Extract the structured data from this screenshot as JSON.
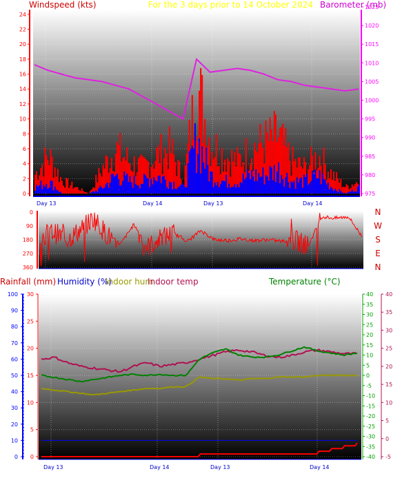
{
  "colors": {
    "wind": "#ff0000",
    "gust_bar": "#ff0000",
    "avg_bar": "#0000ff",
    "barometer": "#e020e0",
    "direction": "#ff0000",
    "rainfall": "#ff0000",
    "humidity": "#0000ff",
    "indoor_hum": "#999900",
    "indoor_temp": "#b01050",
    "temperature": "#008000",
    "subtitle": "#ffff00",
    "windspeed_title": "#cc0000",
    "barometer_title": "#cc00cc",
    "dir_letters": "#cc0000"
  },
  "top": {
    "title_left": "Windspeed (kts)",
    "title_center": "For the 3 days prior to   14 October 2024",
    "title_right": "Barometer (mb)",
    "x_ticks": [
      "Day 13",
      "Day 14",
      "Day 13",
      "Day 14"
    ]
  },
  "middle": {
    "y_ticks": [
      "360",
      "270",
      "180",
      "90",
      "0"
    ],
    "letters": [
      "N",
      "W",
      "S",
      "E",
      "N"
    ]
  },
  "bottom": {
    "title_rain": "Rainfall (mm)",
    "title_hum": "Humidity (%)",
    "title_inhum": "Indoor hum",
    "title_intemp": "Indoor temp",
    "title_temp": "Temperature (°C)",
    "x_ticks": [
      "Day 13",
      "Day 14",
      "Day 13",
      "Day 14"
    ]
  },
  "chart_data": [
    {
      "type": "line",
      "title": "Windspeed (kts)",
      "subtitle": "For the 3 days prior to   14 October 2024",
      "ylabel": "Windspeed (kts)",
      "ylim": [
        0,
        25
      ],
      "y_ticks": [
        0,
        2,
        4,
        6,
        8,
        10,
        12,
        14,
        16,
        18,
        20,
        22,
        24
      ],
      "y2label": "Barometer (mb)",
      "y2lim": [
        975,
        1025
      ],
      "y2_ticks": [
        975,
        980,
        985,
        990,
        995,
        1000,
        1005,
        1010,
        1015,
        1020,
        1025
      ],
      "x_ticks": [
        "Day 13",
        "Day 14",
        "Day 13",
        "Day 14"
      ],
      "x": [
        0,
        3,
        6,
        9,
        12,
        15,
        18,
        21,
        24,
        27,
        30,
        33,
        36,
        39,
        42,
        45,
        48,
        51,
        54,
        57,
        60,
        63,
        66,
        69,
        72
      ],
      "series": [
        {
          "name": "Gust",
          "values": [
            3,
            6,
            2,
            1,
            0,
            4,
            7,
            5,
            4,
            6,
            7,
            2,
            17,
            8,
            6,
            5,
            7,
            8,
            9,
            5,
            4,
            6,
            3,
            1,
            2
          ]
        },
        {
          "name": "Average",
          "values": [
            1,
            2,
            0,
            0,
            0,
            1,
            3,
            2,
            2,
            3,
            2,
            1,
            9,
            3,
            2,
            2,
            3,
            3,
            4,
            2,
            2,
            3,
            1,
            0,
            1
          ]
        },
        {
          "name": "Barometer",
          "values": [
            1009.5,
            1008,
            1007,
            1006,
            1005.5,
            1005,
            1004,
            1003,
            1001,
            999,
            997,
            995,
            1011,
            1007.5,
            1008,
            1008.5,
            1008,
            1007,
            1005.5,
            1005,
            1004,
            1003.5,
            1003,
            1002.5,
            1003
          ]
        }
      ]
    },
    {
      "type": "line",
      "ylabel": "",
      "ylim": [
        0,
        360
      ],
      "y_ticks": [
        0,
        90,
        180,
        270,
        360
      ],
      "x": [
        0,
        3,
        6,
        9,
        12,
        15,
        18,
        21,
        24,
        27,
        30,
        33,
        36,
        39,
        42,
        45,
        48,
        51,
        54,
        57,
        60,
        63,
        66,
        69,
        72
      ],
      "series": [
        {
          "name": "Wind direction",
          "values": [
            200,
            230,
            180,
            240,
            320,
            210,
            150,
            280,
            130,
            190,
            220,
            170,
            240,
            180,
            175,
            185,
            175,
            180,
            170,
            175,
            140,
            330,
            320,
            330,
            200
          ]
        }
      ]
    },
    {
      "type": "line",
      "title": "",
      "x_ticks": [
        "Day 13",
        "Day 14",
        "Day 13",
        "Day 14"
      ],
      "axes": {
        "humidity": {
          "label": "Humidity (%)",
          "lim": [
            0,
            100
          ],
          "ticks": [
            0,
            10,
            20,
            30,
            40,
            50,
            60,
            70,
            80,
            90,
            100
          ]
        },
        "rainfall": {
          "label": "Rainfall (mm)",
          "lim": [
            0,
            30
          ],
          "ticks": [
            0,
            5,
            10,
            15,
            20,
            25,
            30
          ]
        },
        "temperature": {
          "label": "Temperature (°C)",
          "lim": [
            -40,
            40
          ],
          "ticks": [
            -40,
            -35,
            -30,
            -25,
            -20,
            -15,
            -10,
            -5,
            0,
            5,
            10,
            15,
            20,
            25,
            30,
            35,
            40
          ]
        },
        "indoor_temp": {
          "label": "Indoor temp",
          "lim": [
            -5,
            40
          ],
          "ticks": [
            -5,
            0,
            5,
            10,
            15,
            20,
            25,
            30,
            35,
            40
          ]
        }
      },
      "x": [
        0,
        3,
        6,
        9,
        12,
        15,
        18,
        21,
        24,
        27,
        30,
        33,
        36,
        39,
        42,
        45,
        48,
        51,
        54,
        57,
        60,
        63,
        66,
        69,
        72
      ],
      "series": [
        {
          "name": "Rainfall",
          "axis": "rainfall",
          "values": [
            0,
            0,
            0,
            0,
            0,
            0,
            0,
            0,
            0,
            0,
            0,
            0,
            0.5,
            0.5,
            0.5,
            0.5,
            0.5,
            0.5,
            0.5,
            0.5,
            0.5,
            1,
            1.5,
            2,
            2.5
          ]
        },
        {
          "name": "Humidity",
          "axis": "humidity",
          "values": [
            10,
            10,
            10,
            10,
            10,
            10,
            10,
            10,
            10,
            10,
            10,
            10,
            10,
            10,
            10,
            10,
            10,
            10,
            10,
            10,
            10,
            10,
            10,
            10,
            10
          ]
        },
        {
          "name": "Indoor hum",
          "axis": "humidity",
          "values": [
            42,
            41,
            40,
            39,
            38,
            39,
            40,
            41,
            42,
            42,
            43,
            43,
            49,
            48,
            48,
            47,
            48,
            48,
            49,
            49,
            49,
            50,
            50,
            50,
            50
          ]
        },
        {
          "name": "Indoor temp",
          "axis": "indoor_temp",
          "values": [
            22,
            22.5,
            21,
            20,
            19.5,
            19,
            18.5,
            20,
            21,
            20,
            20.5,
            21,
            22,
            23,
            24,
            24.5,
            24,
            23,
            22.5,
            23,
            24,
            24.5,
            24,
            23.5,
            23.5
          ]
        },
        {
          "name": "Temperature",
          "axis": "temperature",
          "values": [
            0,
            -1,
            -2,
            -3,
            -2,
            -1,
            0,
            0.5,
            0,
            0.5,
            0,
            0,
            8,
            11,
            13,
            10,
            9,
            9,
            10,
            12,
            14,
            12,
            11,
            10,
            11
          ]
        }
      ]
    }
  ]
}
